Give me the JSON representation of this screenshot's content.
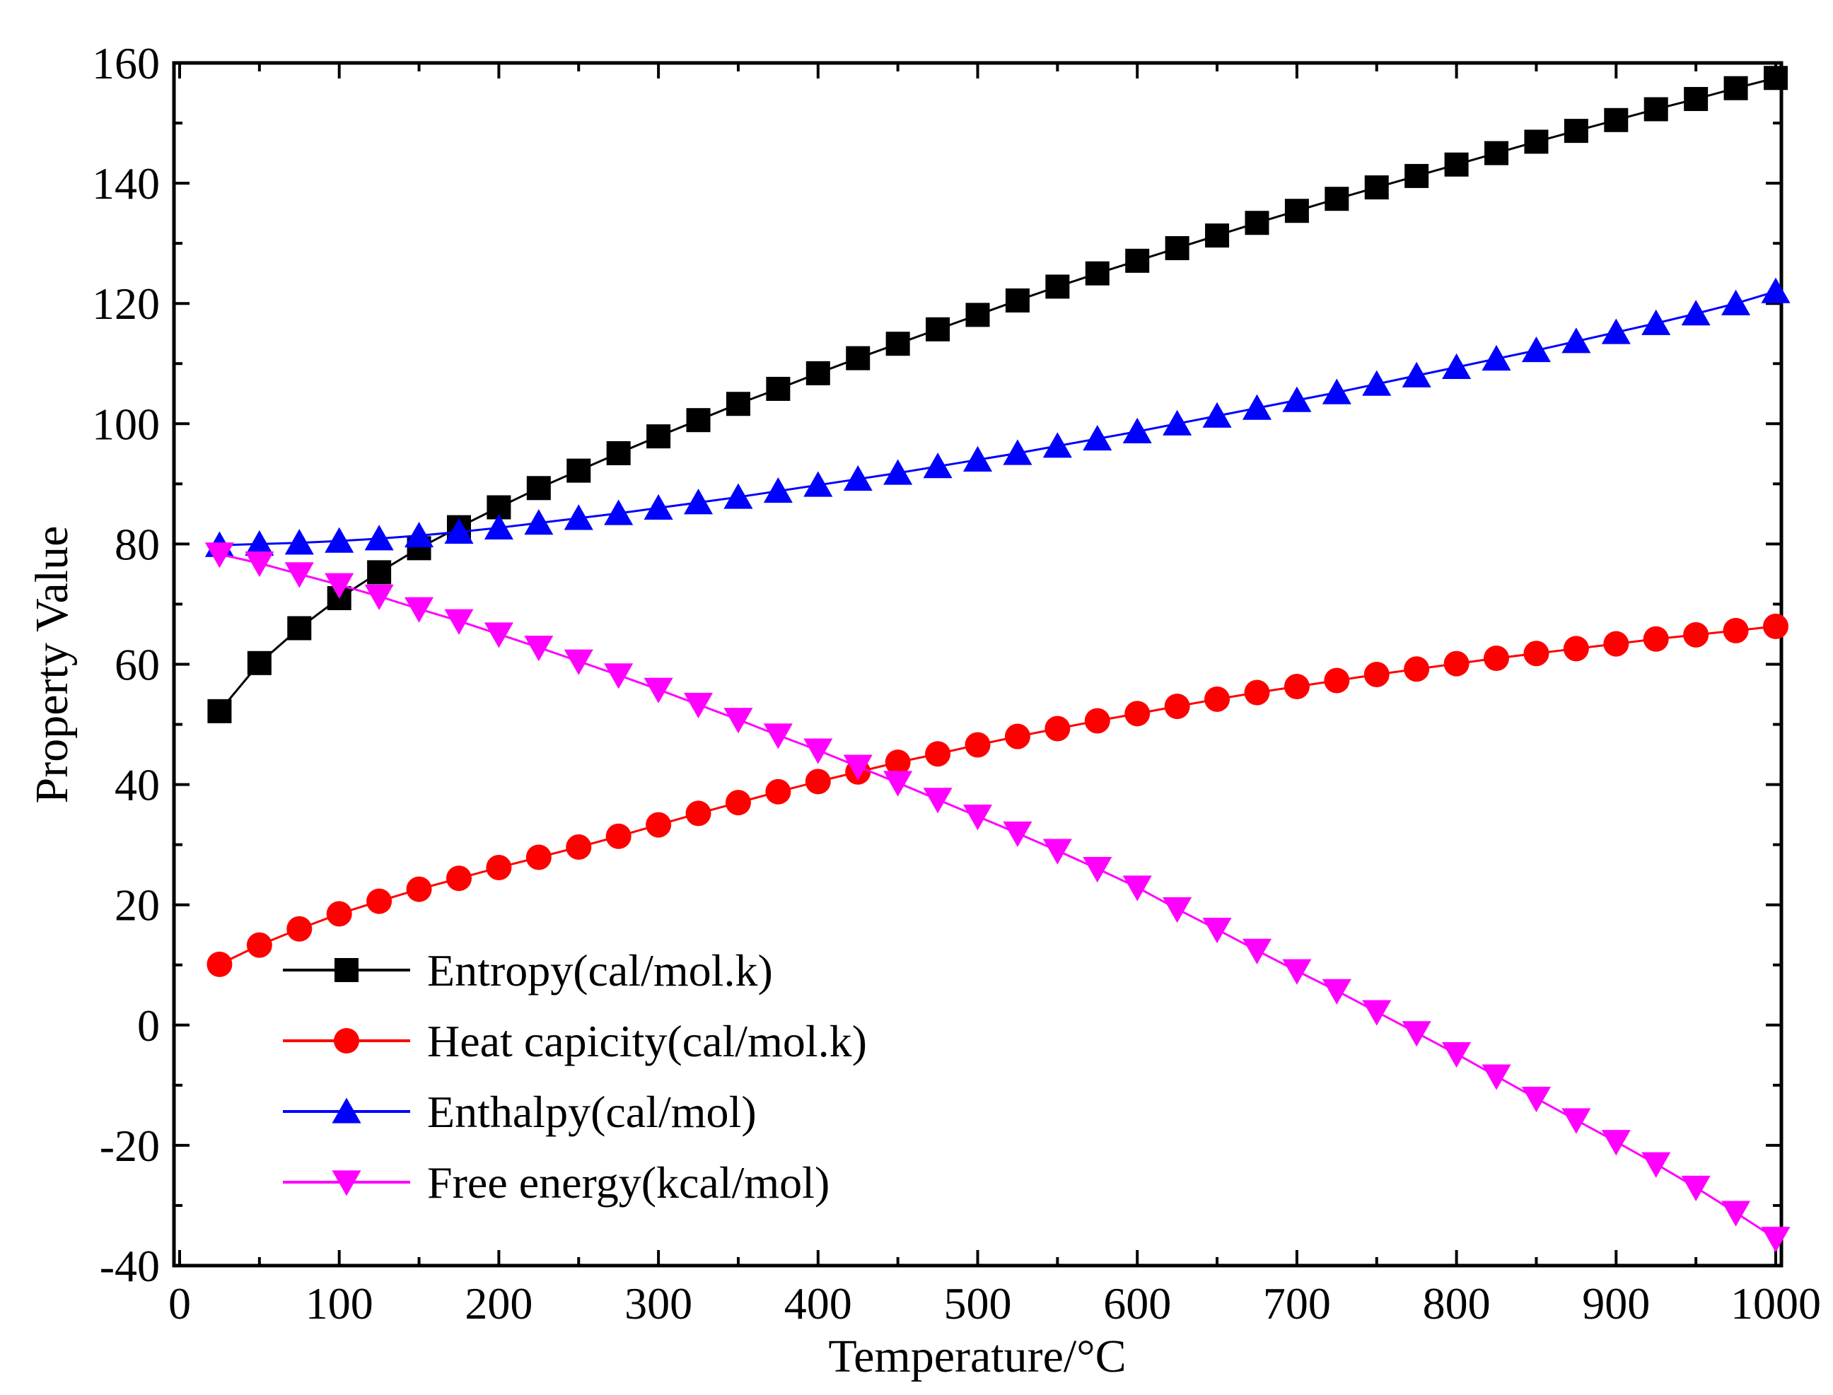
{
  "chart_data": {
    "type": "line",
    "title": "",
    "xlabel": "Temperature/°C",
    "ylabel": "Property Value",
    "xlim": [
      0,
      1000
    ],
    "ylim": [
      -40,
      160
    ],
    "xticks": [
      0,
      100,
      200,
      300,
      400,
      500,
      600,
      700,
      800,
      900,
      1000
    ],
    "yticks": [
      -40,
      -20,
      0,
      20,
      40,
      60,
      80,
      100,
      120,
      140,
      160
    ],
    "grid": false,
    "legend_position": "bottom-left",
    "x": [
      25,
      50,
      75,
      100,
      125,
      150,
      175,
      200,
      225,
      250,
      275,
      300,
      325,
      350,
      375,
      400,
      425,
      450,
      475,
      500,
      525,
      550,
      575,
      600,
      625,
      650,
      675,
      700,
      725,
      750,
      775,
      800,
      825,
      850,
      875,
      900,
      925,
      950,
      975,
      1000
    ],
    "series": [
      {
        "name": "Entropy(cal/mol.k)",
        "color": "#000000",
        "marker": "square",
        "values": [
          52.2,
          60.2,
          66.0,
          71.0,
          75.3,
          79.3,
          82.8,
          86.1,
          89.3,
          92.2,
          95.1,
          97.9,
          100.6,
          103.3,
          105.8,
          108.4,
          110.9,
          113.3,
          115.7,
          118.1,
          120.5,
          122.8,
          125.0,
          127.1,
          129.2,
          131.3,
          133.4,
          135.4,
          137.4,
          139.3,
          141.2,
          143.1,
          145.0,
          146.9,
          148.7,
          150.5,
          152.3,
          154.0,
          155.8,
          157.5
        ]
      },
      {
        "name": "Heat capicity(cal/mol.k)",
        "color": "#ff0000",
        "marker": "circle",
        "values": [
          10.1,
          13.3,
          16.0,
          18.5,
          20.6,
          22.6,
          24.4,
          26.2,
          27.9,
          29.6,
          31.4,
          33.3,
          35.2,
          37.0,
          38.8,
          40.5,
          42.1,
          43.7,
          45.1,
          46.6,
          48.0,
          49.3,
          50.6,
          51.8,
          53.0,
          54.2,
          55.3,
          56.3,
          57.3,
          58.3,
          59.2,
          60.1,
          61.0,
          61.8,
          62.6,
          63.4,
          64.2,
          64.9,
          65.6,
          66.3
        ]
      },
      {
        "name": "Enthalpy(cal/mol)",
        "color": "#0000ff",
        "marker": "triangle-up",
        "values": [
          79.8,
          80.0,
          80.2,
          80.5,
          80.9,
          81.4,
          82.0,
          82.7,
          83.5,
          84.3,
          85.1,
          86.0,
          86.9,
          87.8,
          88.8,
          89.8,
          90.8,
          91.8,
          92.9,
          94.0,
          95.1,
          96.3,
          97.5,
          98.7,
          100.0,
          101.3,
          102.6,
          103.9,
          105.2,
          106.6,
          108.0,
          109.4,
          110.8,
          112.2,
          113.7,
          115.2,
          116.7,
          118.3,
          120.0,
          122.0
        ]
      },
      {
        "name": "Free energy(kcal/mol)",
        "color": "#ff00ff",
        "marker": "triangle-down",
        "values": [
          78.3,
          76.8,
          75.0,
          73.2,
          71.3,
          69.2,
          67.2,
          65.0,
          62.8,
          60.5,
          58.2,
          55.8,
          53.3,
          50.8,
          48.2,
          45.7,
          43.0,
          40.3,
          37.5,
          34.7,
          31.9,
          29.0,
          26.0,
          22.9,
          19.3,
          15.9,
          12.4,
          9.0,
          5.7,
          2.2,
          -1.3,
          -4.8,
          -8.5,
          -12.2,
          -15.8,
          -19.4,
          -23.1,
          -27.0,
          -31.2,
          -35.5
        ]
      }
    ]
  }
}
